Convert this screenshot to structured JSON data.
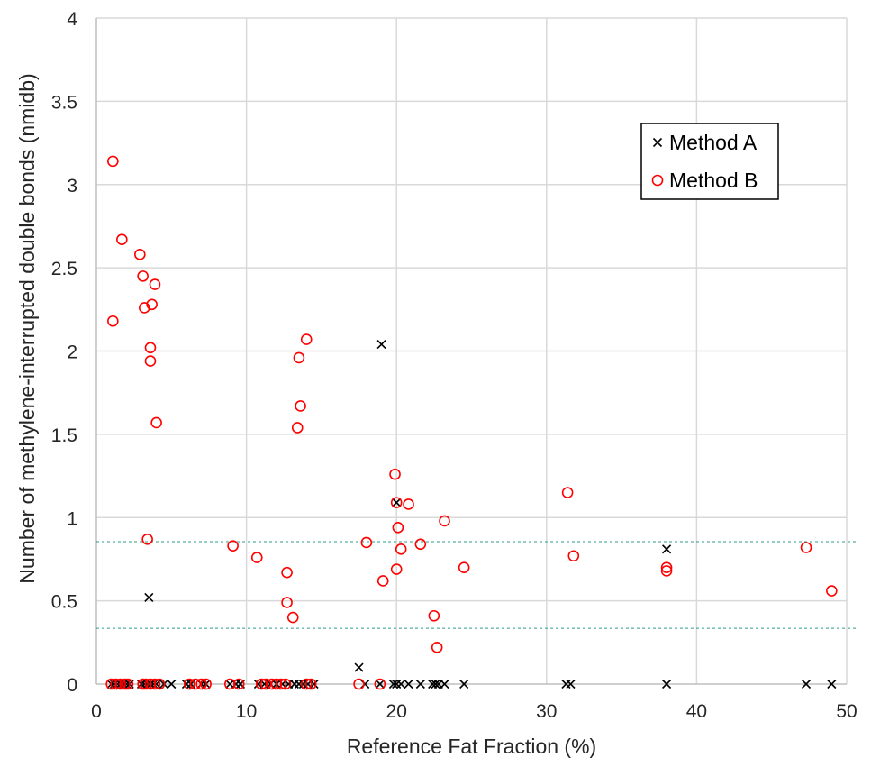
{
  "chart_data": {
    "type": "scatter",
    "title": "",
    "xlabel": "Reference Fat Fraction (%)",
    "ylabel": "Number of methylene-interrupted double bonds (nmidb)",
    "xlim": [
      0,
      50
    ],
    "ylim": [
      0,
      4
    ],
    "x_ticks": [
      "0",
      "10",
      "20",
      "30",
      "40",
      "50"
    ],
    "y_ticks": [
      "0",
      "0.5",
      "1",
      "1.5",
      "2",
      "2.5",
      "3",
      "3.5",
      "4"
    ],
    "x_tick_values": [
      0,
      10,
      20,
      30,
      40,
      50
    ],
    "y_tick_values": [
      0,
      0.5,
      1,
      1.5,
      2,
      2.5,
      3,
      3.5,
      4
    ],
    "grid": true,
    "legend_position": "top-right",
    "reference_lines": [
      {
        "y": 0.855,
        "style": "dashed",
        "color": "#2e9e88"
      },
      {
        "y": 0.335,
        "style": "dashed",
        "color": "#2e9e88"
      }
    ],
    "series": [
      {
        "name": "Method A",
        "marker": "x",
        "color": "#000000",
        "points": [
          [
            1.0,
            0
          ],
          [
            1.2,
            0
          ],
          [
            1.4,
            0
          ],
          [
            1.6,
            0
          ],
          [
            1.8,
            0
          ],
          [
            2.0,
            0
          ],
          [
            2.2,
            0
          ],
          [
            3.0,
            0
          ],
          [
            3.2,
            0
          ],
          [
            3.4,
            0
          ],
          [
            3.6,
            0
          ],
          [
            3.8,
            0
          ],
          [
            4.0,
            0
          ],
          [
            4.5,
            0
          ],
          [
            5.0,
            0
          ],
          [
            6.0,
            0
          ],
          [
            6.3,
            0
          ],
          [
            7.0,
            0
          ],
          [
            7.3,
            0
          ],
          [
            8.9,
            0
          ],
          [
            9.3,
            0
          ],
          [
            9.6,
            0
          ],
          [
            10.8,
            0
          ],
          [
            11.2,
            0
          ],
          [
            11.6,
            0
          ],
          [
            12.0,
            0
          ],
          [
            12.4,
            0
          ],
          [
            12.8,
            0
          ],
          [
            13.2,
            0
          ],
          [
            13.5,
            0
          ],
          [
            13.8,
            0
          ],
          [
            14.1,
            0
          ],
          [
            14.5,
            0
          ],
          [
            17.9,
            0
          ],
          [
            18.9,
            0
          ],
          [
            19.8,
            0
          ],
          [
            20.0,
            0
          ],
          [
            20.3,
            0
          ],
          [
            20.8,
            0
          ],
          [
            21.6,
            0
          ],
          [
            22.4,
            0
          ],
          [
            22.6,
            0
          ],
          [
            22.8,
            0
          ],
          [
            23.2,
            0
          ],
          [
            24.5,
            0
          ],
          [
            31.3,
            0
          ],
          [
            31.6,
            0
          ],
          [
            38.0,
            0
          ],
          [
            47.3,
            0
          ],
          [
            49.0,
            0
          ],
          [
            3.5,
            0.52
          ],
          [
            19.0,
            2.04
          ],
          [
            20.0,
            1.09
          ],
          [
            17.5,
            0.1
          ],
          [
            38.0,
            0.81
          ]
        ]
      },
      {
        "name": "Method B",
        "marker": "circle",
        "color": "#ff0000",
        "points": [
          [
            1.0,
            0
          ],
          [
            1.3,
            0
          ],
          [
            1.6,
            0
          ],
          [
            1.9,
            0
          ],
          [
            2.1,
            0
          ],
          [
            3.1,
            0
          ],
          [
            3.3,
            0
          ],
          [
            3.6,
            0
          ],
          [
            3.9,
            0
          ],
          [
            4.2,
            0
          ],
          [
            6.2,
            0
          ],
          [
            6.6,
            0
          ],
          [
            7.0,
            0
          ],
          [
            7.3,
            0
          ],
          [
            8.9,
            0
          ],
          [
            9.5,
            0
          ],
          [
            11.0,
            0
          ],
          [
            11.3,
            0
          ],
          [
            11.7,
            0
          ],
          [
            12.0,
            0
          ],
          [
            12.3,
            0
          ],
          [
            12.6,
            0
          ],
          [
            14.0,
            0
          ],
          [
            14.3,
            0
          ],
          [
            17.5,
            0
          ],
          [
            18.9,
            0
          ],
          [
            1.1,
            3.14
          ],
          [
            1.7,
            2.67
          ],
          [
            2.9,
            2.58
          ],
          [
            3.1,
            2.45
          ],
          [
            3.9,
            2.4
          ],
          [
            3.7,
            2.28
          ],
          [
            3.2,
            2.26
          ],
          [
            1.1,
            2.18
          ],
          [
            3.6,
            2.02
          ],
          [
            3.6,
            1.94
          ],
          [
            4.0,
            1.57
          ],
          [
            3.4,
            0.87
          ],
          [
            9.1,
            0.83
          ],
          [
            10.7,
            0.76
          ],
          [
            12.7,
            0.67
          ],
          [
            12.7,
            0.49
          ],
          [
            13.1,
            0.4
          ],
          [
            14.0,
            2.07
          ],
          [
            13.5,
            1.96
          ],
          [
            13.6,
            1.67
          ],
          [
            13.4,
            1.54
          ],
          [
            18.0,
            0.85
          ],
          [
            19.1,
            0.62
          ],
          [
            19.9,
            1.26
          ],
          [
            20.0,
            1.09
          ],
          [
            20.1,
            0.94
          ],
          [
            20.8,
            1.08
          ],
          [
            20.3,
            0.81
          ],
          [
            20.0,
            0.69
          ],
          [
            21.6,
            0.84
          ],
          [
            22.5,
            0.41
          ],
          [
            22.7,
            0.22
          ],
          [
            23.2,
            0.98
          ],
          [
            24.5,
            0.7
          ],
          [
            31.4,
            1.15
          ],
          [
            31.8,
            0.77
          ],
          [
            38.0,
            0.7
          ],
          [
            38.0,
            0.68
          ],
          [
            47.3,
            0.82
          ],
          [
            49.0,
            0.56
          ]
        ]
      }
    ]
  }
}
